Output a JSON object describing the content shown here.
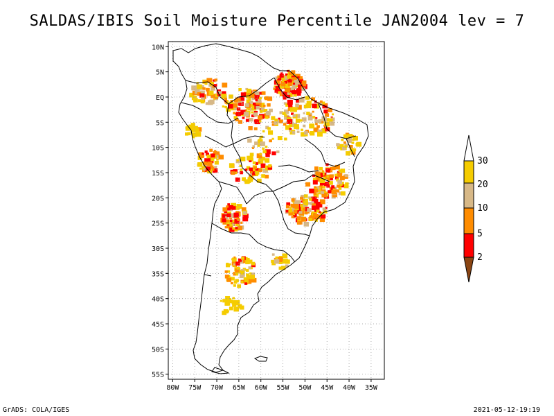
{
  "title": "SALDAS/IBIS Soil Moisture Percentile JAN2004 lev = 7",
  "lat_labels": [
    "10N",
    "5N",
    "EQ",
    "5S",
    "10S",
    "15S",
    "20S",
    "25S",
    "30S",
    "35S",
    "40S",
    "45S",
    "50S",
    "55S"
  ],
  "lat_values": [
    10,
    5,
    0,
    -5,
    -10,
    -15,
    -20,
    -25,
    -30,
    -35,
    -40,
    -45,
    -50,
    -55
  ],
  "lon_labels": [
    "80W",
    "75W",
    "70W",
    "65W",
    "60W",
    "55W",
    "50W",
    "45W",
    "40W",
    "35W"
  ],
  "lon_values": [
    -80,
    -75,
    -70,
    -65,
    -60,
    -55,
    -50,
    -45,
    -40,
    -35
  ],
  "map_extent": {
    "lon_min": -81,
    "lon_max": -32,
    "lat_min": -56,
    "lat_max": 11
  },
  "colorbar": {
    "tick_labels": [
      "30",
      "20",
      "10",
      "5",
      "2"
    ],
    "colors": {
      "above_30": "#ffffff",
      "20_30": "#f5cc00",
      "10_20": "#d7b887",
      "5_10": "#ff8c00",
      "2_5": "#ff0000",
      "below_2": "#8b4513"
    }
  },
  "patch_colors": [
    "#f5cc00",
    "#d7b887",
    "#ff8c00",
    "#ff0000"
  ],
  "footer": {
    "left": "GrADS: COLA/IGES",
    "right": "2021-05-12-19:19"
  }
}
